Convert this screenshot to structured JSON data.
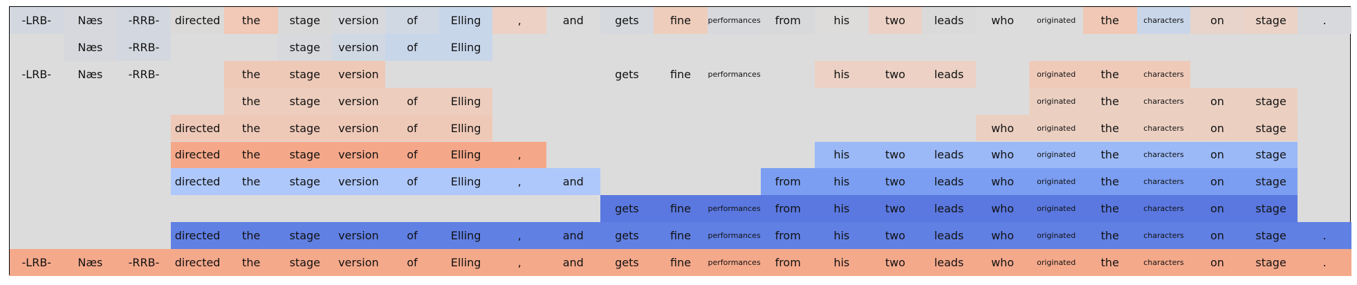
{
  "chart_data": {
    "type": "heatmap",
    "title": "",
    "tokens": [
      "-LRB-",
      "Næs",
      "-RRB-",
      "directed",
      "the",
      "stage",
      "version",
      "of",
      "Elling",
      ",",
      "and",
      "gets",
      "fine",
      "performances",
      "from",
      "his",
      "two",
      "leads",
      "who",
      "originated",
      "the",
      "characters",
      "on",
      "stage",
      "."
    ],
    "background_color": "#dcdcdc",
    "rows": [
      {
        "span": [
          0,
          24
        ],
        "colors": [
          "#d3d7df",
          "#d6d8dd",
          "#d3d7df",
          "#dbdad9",
          "#f2c8b6",
          "#d9d9da",
          "#d7d9dc",
          "#d0d8e3",
          "#c8d6ea",
          "#edd1c4",
          "#dddcdc",
          "#d6d9de",
          "#efcdbc",
          "#d7d9dd",
          "#d8d9db",
          "#dedcdb",
          "#ecd2c6",
          "#dbdadb",
          "#dcdcdc",
          "#dcdcdc",
          "#f1c8b5",
          "#c9d6e9",
          "#e8d4ca",
          "#ebd3c7",
          "#d8d9dc"
        ]
      },
      {
        "span": [
          1,
          8
        ],
        "cells": [
          1,
          2,
          5,
          6,
          7,
          8
        ],
        "colors": [
          "#d6d8dd",
          "#d3d7df",
          "#d7d9dc",
          "#d0d8e3",
          "#c8d6ea",
          "#c8d6ea"
        ]
      },
      {
        "span": [
          0,
          21
        ],
        "cells": [
          0,
          1,
          2,
          4,
          5,
          6,
          11,
          12,
          13,
          15,
          16,
          17,
          19,
          20,
          21
        ],
        "colors": [
          "#dcdcdc",
          "#dcdcdc",
          "#dcdcdc",
          "#efc9b8",
          "#efc9b8",
          "#efc9b8",
          "#dcdcdc",
          "#dcdcdc",
          "#dcdcdc",
          "#ecd1c4",
          "#ecd1c4",
          "#ecd1c4",
          "#efcab9",
          "#efcab9",
          "#efcab9"
        ]
      },
      {
        "span": [
          4,
          23
        ],
        "cells": [
          4,
          5,
          6,
          7,
          8,
          19,
          20,
          21,
          22,
          23
        ],
        "colors": [
          "#edcdbd",
          "#edcdbd",
          "#edcdbd",
          "#edcdbd",
          "#edcdbd",
          "#ebd0c2",
          "#ebd0c2",
          "#ebd0c2",
          "#ebd0c2",
          "#ebd0c2"
        ]
      },
      {
        "span": [
          3,
          23
        ],
        "cells": [
          3,
          4,
          5,
          6,
          7,
          8,
          18,
          19,
          20,
          21,
          22,
          23
        ],
        "colors": [
          "#efc9b8",
          "#efc9b8",
          "#efc9b8",
          "#efc9b8",
          "#efc9b8",
          "#efc9b8",
          "#ebcfc1",
          "#ebcfc1",
          "#ebcfc1",
          "#ebcfc1",
          "#ebcfc1",
          "#ebcfc1"
        ]
      },
      {
        "span": [
          3,
          23
        ],
        "cells": [
          3,
          4,
          5,
          6,
          7,
          8,
          9,
          15,
          16,
          17,
          18,
          19,
          20,
          21,
          22,
          23
        ],
        "colors": [
          "#f5a889",
          "#f5a889",
          "#f5a889",
          "#f5a889",
          "#f5a889",
          "#f5a889",
          "#f5a889",
          "#9bb9f7",
          "#9bb9f7",
          "#9bb9f7",
          "#9bb9f7",
          "#9bb9f7",
          "#9bb9f7",
          "#9bb9f7",
          "#9bb9f7",
          "#9bb9f7"
        ]
      },
      {
        "span": [
          3,
          23
        ],
        "cells": [
          3,
          4,
          5,
          6,
          7,
          8,
          9,
          10,
          14,
          15,
          16,
          17,
          18,
          19,
          20,
          21,
          22,
          23
        ],
        "colors": [
          "#aec8fb",
          "#aec8fb",
          "#aec8fb",
          "#aec8fb",
          "#aec8fb",
          "#aec8fb",
          "#aec8fb",
          "#aec8fb",
          "#7b9ef2",
          "#7b9ef2",
          "#7b9ef2",
          "#7b9ef2",
          "#7b9ef2",
          "#7b9ef2",
          "#7b9ef2",
          "#7b9ef2",
          "#7b9ef2",
          "#7b9ef2"
        ]
      },
      {
        "span": [
          11,
          23
        ],
        "cells": [
          11,
          12,
          13,
          14,
          15,
          16,
          17,
          18,
          19,
          20,
          21,
          22,
          23
        ],
        "colors": [
          "#5a78e0",
          "#5a78e0",
          "#5a78e0",
          "#5a78e0",
          "#5a78e0",
          "#5a78e0",
          "#5a78e0",
          "#5a78e0",
          "#5a78e0",
          "#5a78e0",
          "#5a78e0",
          "#5a78e0",
          "#5a78e0"
        ]
      },
      {
        "span": [
          3,
          24
        ],
        "cells": [
          3,
          4,
          5,
          6,
          7,
          8,
          9,
          10,
          11,
          12,
          13,
          14,
          15,
          16,
          17,
          18,
          19,
          20,
          21,
          22,
          23,
          24
        ],
        "colors": [
          "#6180e4",
          "#6180e4",
          "#6180e4",
          "#6180e4",
          "#6180e4",
          "#6180e4",
          "#6180e4",
          "#6180e4",
          "#6180e4",
          "#6180e4",
          "#6180e4",
          "#6180e4",
          "#6180e4",
          "#6180e4",
          "#6180e4",
          "#6180e4",
          "#6180e4",
          "#6180e4",
          "#6180e4",
          "#6180e4",
          "#6180e4",
          "#6180e4"
        ]
      },
      {
        "span": [
          0,
          24
        ],
        "colors": [
          "#f5a98b",
          "#f5a98b",
          "#f5a98b",
          "#f5a98b",
          "#f5a98b",
          "#f5a98b",
          "#f5a98b",
          "#f5a98b",
          "#f5a98b",
          "#f5a98b",
          "#f5a98b",
          "#f5a98b",
          "#f5a98b",
          "#f5a98b",
          "#f5a98b",
          "#f5a98b",
          "#f5a98b",
          "#f5a98b",
          "#f5a98b",
          "#f5a98b",
          "#f5a98b",
          "#f5a98b",
          "#f5a98b",
          "#f5a98b",
          "#f5a98b"
        ]
      }
    ]
  }
}
